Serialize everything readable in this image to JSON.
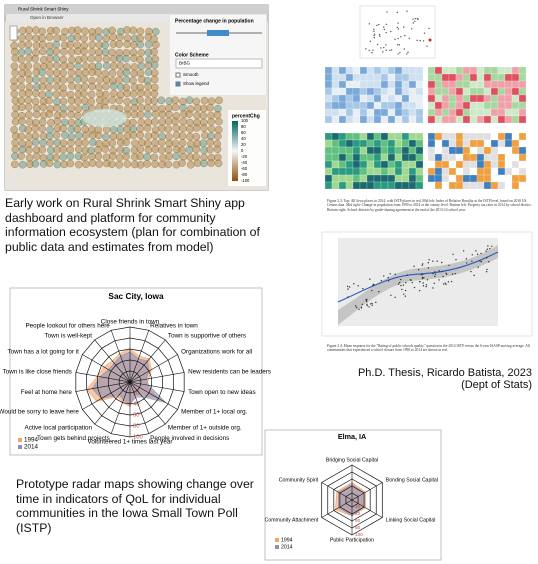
{
  "app_screenshot": {
    "window_title": "Rural Shrink Smart Shiny",
    "toolbar_button": "Open in Browser",
    "slider_label": "Percentage change in population",
    "color_scheme_label": "Color Scheme",
    "color_scheme_value": "BrBG",
    "checkbox_smooth": "Smooth",
    "checkbox_legend": "Show legend",
    "legend_title": "percentChg",
    "legend_ticks": [
      100,
      80,
      60,
      40,
      20,
      0,
      -20,
      -40,
      -60,
      -80,
      -100
    ]
  },
  "app_caption": "Early work on Rural Shrink Smart Shiny app dashboard and platform for community information ecosystem (plan for combination of public data and estimates from model)",
  "thesis": {
    "figure_2_3_caption": "Figure 2.3: Top: All Iowa places in 2014, with ISTP places in red. Mid left: Index of Relative Rurality at the ISTP level, based on 2010 US Census data. Mid right: Change in population from 1990 to 2014 at the county level. Bottom left: Property tax rates in 2014 by school district. Bottom right: School districts by grade-sharing agreement at the end of the 2013-14 school year.",
    "figure_2_4_caption": "Figure 2.4: Mean response for the \"Rating of public schools quality\" question in the 2014 ISTP versus the 6-year ISASP moving average. All communities that experienced a school closure from 1990 to 2014 are shown in red.",
    "credit_line_1": "Ph.D. Thesis, Ricardo Batista, 2023",
    "credit_line_2": "(Dept of Stats)"
  },
  "radar_caption": "Prototype radar maps showing change over time in indicators of QoL for individual communities in the Iowa Small Town Poll (ISTP)",
  "chart_data": [
    {
      "type": "radar",
      "title": "Sac City, Iowa",
      "categories": [
        "Close friends in town",
        "Relatives in town",
        "Town is supportive of others",
        "Organizations work for all",
        "New residents can be leaders",
        "Town open to new ideas",
        "Member of 1+ local org.",
        "Member of 1+ outside org.",
        "People involved in decisions",
        "Volunteered 1+ times last year",
        "Town gets behind projects",
        "Active local participation",
        "Would be sorry to leave here",
        "Feel at home here",
        "Town is like close friends",
        "Town has a lot going for it",
        "Town is well-kept",
        "People lookout for others here"
      ],
      "series": [
        {
          "name": "1994",
          "color": "#f4a46a",
          "values": [
            60,
            50,
            55,
            45,
            35,
            30,
            60,
            30,
            25,
            45,
            40,
            35,
            70,
            80,
            60,
            55,
            50,
            55
          ]
        },
        {
          "name": "2014",
          "color": "#8c8fb5",
          "values": [
            55,
            45,
            50,
            40,
            30,
            35,
            75,
            35,
            30,
            40,
            35,
            30,
            60,
            70,
            55,
            45,
            45,
            50
          ]
        }
      ],
      "ylim": [
        0,
        100
      ],
      "yticks": [
        20,
        40,
        60,
        80,
        100
      ]
    },
    {
      "type": "radar",
      "title": "Elma, IA",
      "categories": [
        "Bridging Social Capital",
        "Bonding Social Capital",
        "Linking Social Capital",
        "Public Participation",
        "Community Attachment",
        "Community Spirit"
      ],
      "series": [
        {
          "name": "1994",
          "color": "#f4a46a",
          "values": [
            50,
            45,
            45,
            45,
            55,
            50
          ]
        },
        {
          "name": "2014",
          "color": "#8c8fb5",
          "values": [
            45,
            40,
            40,
            45,
            45,
            45
          ]
        }
      ],
      "ylim": [
        0,
        100
      ],
      "yticks": [
        20,
        40,
        60,
        80,
        100
      ]
    }
  ]
}
